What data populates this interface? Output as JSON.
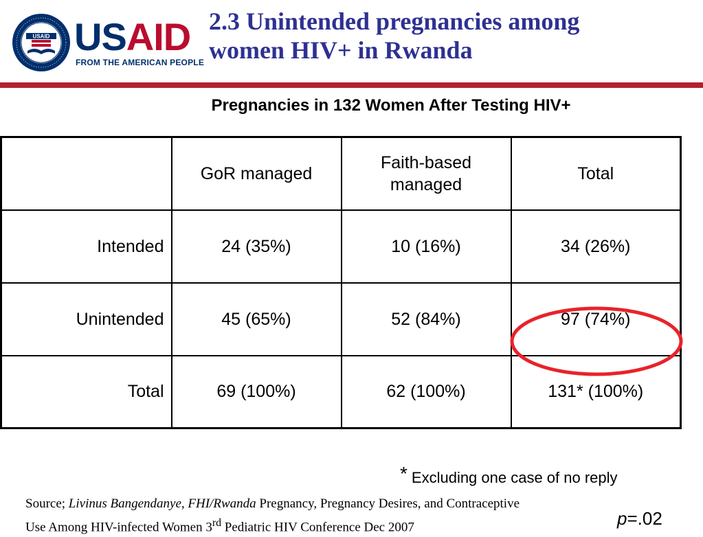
{
  "logo": {
    "seal_text": "UNITED STATES AGENCY · INTERNATIONAL DEVELOPMENT",
    "seal_center": "USAID",
    "wordmark_us": "US",
    "wordmark_aid": "AID",
    "tagline": "FROM THE AMERICAN PEOPLE",
    "colors": {
      "navy": "#002f6c",
      "red": "#ba0c2f"
    }
  },
  "slide": {
    "title_line1": "2.3 Unintended pregnancies among",
    "title_line2": "women HIV+ in Rwanda",
    "subtitle": "Pregnancies in 132 Women After Testing HIV+",
    "title_color": "#2e3192",
    "rule_color": "#b5202e"
  },
  "table": {
    "headers": [
      "",
      "GoR managed",
      "Faith-based managed",
      "Total"
    ],
    "rows": [
      {
        "label": "Intended",
        "values": [
          "24 (35%)",
          "10 (16%)",
          "34 (26%)"
        ]
      },
      {
        "label": "Unintended",
        "values": [
          "45 (65%)",
          "52 (84%)",
          "97 (74%)"
        ]
      },
      {
        "label": "Total",
        "values": [
          "69 (100%)",
          "62  (100%)",
          "131* (100%)"
        ]
      }
    ],
    "highlight_color": "#e8232a"
  },
  "footnote": {
    "star": "*",
    "text": "Excluding one case of no reply"
  },
  "source": {
    "prefix": "Source; ",
    "authors": "Livinus Bangendanye, FHI/Rwanda",
    "line1_rest": " Pregnancy, Pregnancy Desires, and Contraceptive",
    "line2_start": "Use Among HIV-infected Women 3",
    "line2_sup": "rd",
    "line2_end": " Pediatric HIV Conference Dec 2007"
  },
  "pvalue": {
    "p": "p",
    "rest": "=.02"
  }
}
